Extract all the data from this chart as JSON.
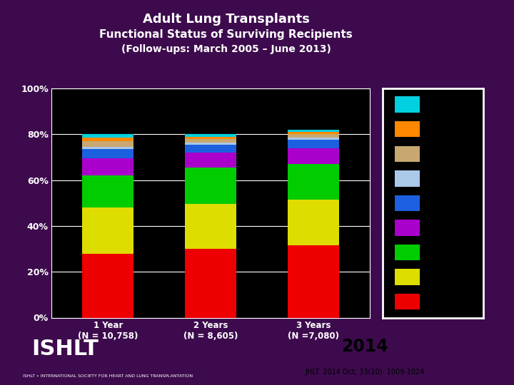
{
  "title_line1": "Adult Lung Transplants",
  "title_line2": "Functional Status of Surviving Recipients",
  "title_line3": "(Follow-ups: March 2005 – June 2013)",
  "categories": [
    "1 Year\n(N = 10,758)",
    "2 Years\n(N = 8,605)",
    "3 Years\n(N =7,080)"
  ],
  "background_color": "#3d0b4d",
  "plot_bg_color": "#000000",
  "bar_width": 0.5,
  "segments": [
    {
      "label": "red_bottom",
      "color": "#ee0000",
      "values": [
        28.0,
        30.0,
        31.5
      ]
    },
    {
      "label": "yellow",
      "color": "#dddd00",
      "values": [
        20.0,
        19.5,
        20.0
      ]
    },
    {
      "label": "green",
      "color": "#00cc00",
      "values": [
        14.0,
        16.0,
        15.5
      ]
    },
    {
      "label": "purple",
      "color": "#aa00cc",
      "values": [
        7.5,
        6.5,
        7.0
      ]
    },
    {
      "label": "blue",
      "color": "#1c60e0",
      "values": [
        4.0,
        3.5,
        3.5
      ]
    },
    {
      "label": "light_blue",
      "color": "#aac8e8",
      "values": [
        1.0,
        1.0,
        1.0
      ]
    },
    {
      "label": "tan",
      "color": "#c8a870",
      "values": [
        2.5,
        1.5,
        1.5
      ]
    },
    {
      "label": "orange",
      "color": "#ff8800",
      "values": [
        1.5,
        1.0,
        1.0
      ]
    },
    {
      "label": "cyan_top",
      "color": "#00d0e0",
      "values": [
        1.5,
        1.0,
        1.0
      ]
    }
  ],
  "legend_segments_top_to_bottom": [
    {
      "color": "#00d0e0"
    },
    {
      "color": "#ff8800"
    },
    {
      "color": "#c8a870"
    },
    {
      "color": "#aac8e8"
    },
    {
      "color": "#1c60e0"
    },
    {
      "color": "#aa00cc"
    },
    {
      "color": "#00cc00"
    },
    {
      "color": "#dddd00"
    },
    {
      "color": "#ee0000"
    }
  ],
  "ylim": [
    0,
    100
  ],
  "yticks": [
    0,
    20,
    40,
    60,
    80,
    100
  ],
  "ytick_labels": [
    "0%",
    "20%",
    "40%",
    "60%",
    "80%",
    "100%"
  ],
  "text_color": "#ffffff",
  "grid_color": "#ffffff",
  "legend_edge_color": "#ffffff",
  "footer_text": "2014",
  "footer_subtext": "JHLT. 2014 Oct; 33(10): 1009-1024"
}
